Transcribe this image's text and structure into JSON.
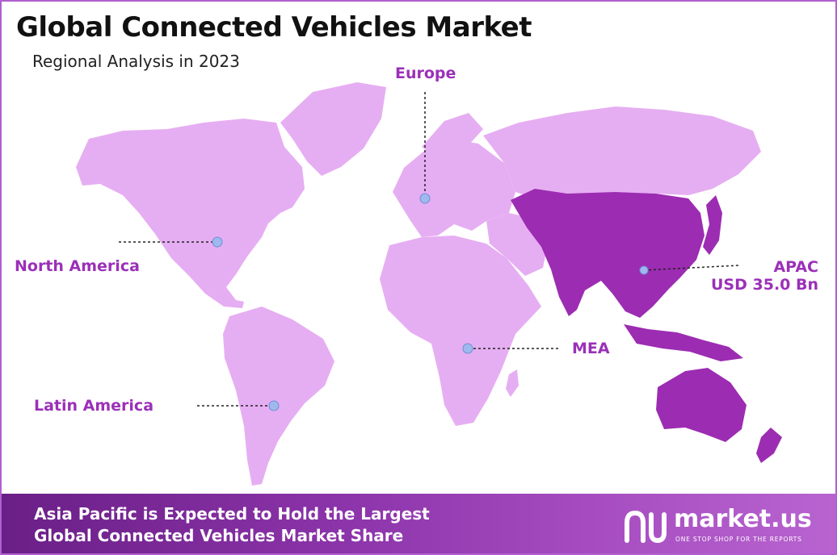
{
  "title": "Global Connected Vehicles Market",
  "subtitle": "Regional Analysis in 2023",
  "regions": {
    "europe": {
      "label": "Europe"
    },
    "north_america": {
      "label": "North America"
    },
    "latin_america": {
      "label": "Latin America"
    },
    "mea": {
      "label": "MEA"
    },
    "apac": {
      "label": "APAC",
      "value": "USD 35.0 Bn",
      "highlighted": true
    }
  },
  "colors": {
    "land": "#e6aef2",
    "highlight": "#9c2cb2",
    "label": "#9b30b8",
    "marker": "#9fb8ee",
    "border": "#b05fd0",
    "banner_from": "#6a1f86",
    "banner_to": "#b864d0"
  },
  "footer": {
    "line1": "Asia Pacific is Expected to Hold the Largest",
    "line2": "Global Connected Vehicles Market Share"
  },
  "brand": {
    "name": "market.us",
    "tagline": "ONE STOP SHOP FOR THE REPORTS"
  }
}
